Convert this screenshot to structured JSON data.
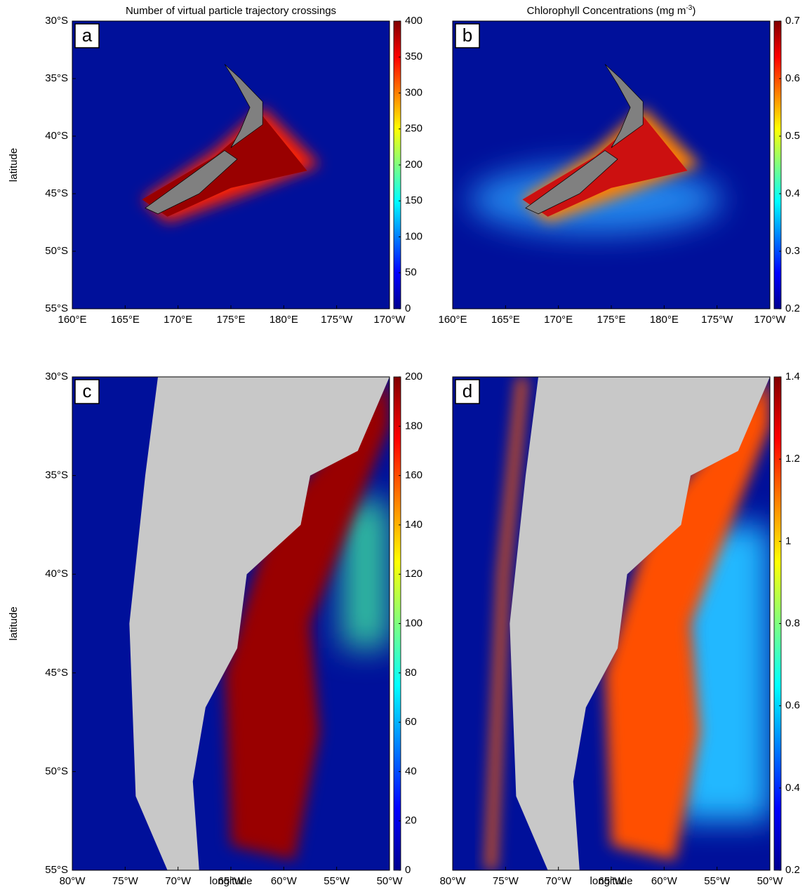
{
  "ylabel": "latitude",
  "xlabel": "longitude",
  "panels": [
    {
      "label": "a",
      "title": [
        "Number of virtual particle trajectory crossings"
      ],
      "xticks": [
        "160°E",
        "165°E",
        "170°E",
        "175°E",
        "180°E",
        "175°W",
        "170°W"
      ],
      "yticks": [
        "30°S",
        "35°S",
        "40°S",
        "45°S",
        "50°S",
        "55°S"
      ],
      "clim": [
        0,
        400
      ],
      "cticks": [
        0,
        50,
        100,
        150,
        200,
        250,
        300,
        350,
        400
      ]
    },
    {
      "label": "b",
      "title": [
        "Chlorophyll Concentrations (mg m",
        "-3",
        ")"
      ],
      "xticks": [
        "160°E",
        "165°E",
        "170°E",
        "175°E",
        "180°E",
        "175°W",
        "170°W"
      ],
      "clim": [
        0.2,
        0.7
      ],
      "cticks": [
        0.2,
        0.3,
        0.4,
        0.5,
        0.6,
        0.7
      ]
    },
    {
      "label": "c",
      "xticks": [
        "80°W",
        "75°W",
        "70°W",
        "65°W",
        "60°W",
        "55°W",
        "50°W"
      ],
      "yticks": [
        "30°S",
        "35°S",
        "40°S",
        "45°S",
        "50°S",
        "55°S"
      ],
      "clim": [
        0,
        200
      ],
      "cticks": [
        0,
        20,
        40,
        60,
        80,
        100,
        120,
        140,
        160,
        180,
        200
      ]
    },
    {
      "label": "d",
      "xticks": [
        "80°W",
        "75°W",
        "70°W",
        "65°W",
        "60°W",
        "55°W",
        "50°W"
      ],
      "clim": [
        0.2,
        1.4
      ],
      "cticks": [
        0.2,
        0.4,
        0.6,
        0.8,
        1,
        1.2,
        1.4
      ]
    }
  ]
}
